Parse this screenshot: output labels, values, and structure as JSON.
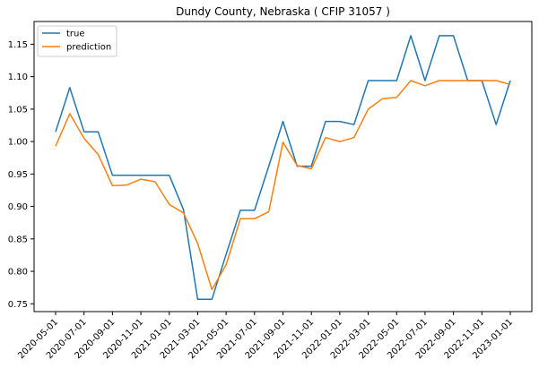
{
  "colors": {
    "true": "#1f77b4",
    "prediction": "#ff7f0e"
  },
  "chart_data": {
    "type": "line",
    "title": "Dundy County, Nebraska ( CFIP 31057 )",
    "xlabel": "",
    "ylabel": "",
    "x": [
      "2020-05-01",
      "2020-06-01",
      "2020-07-01",
      "2020-08-01",
      "2020-09-01",
      "2020-10-01",
      "2020-11-01",
      "2020-12-01",
      "2021-01-01",
      "2021-02-01",
      "2021-03-01",
      "2021-04-01",
      "2021-05-01",
      "2021-06-01",
      "2021-07-01",
      "2021-08-01",
      "2021-09-01",
      "2021-10-01",
      "2021-11-01",
      "2021-12-01",
      "2022-01-01",
      "2022-02-01",
      "2022-03-01",
      "2022-04-01",
      "2022-05-01",
      "2022-06-01",
      "2022-07-01",
      "2022-08-01",
      "2022-09-01",
      "2022-10-01",
      "2022-11-01",
      "2022-12-01",
      "2023-01-01"
    ],
    "x_ticks": [
      "2020-05-01",
      "2020-07-01",
      "2020-09-01",
      "2020-11-01",
      "2021-01-01",
      "2021-03-01",
      "2021-05-01",
      "2021-07-01",
      "2021-09-01",
      "2021-11-01",
      "2022-01-01",
      "2022-03-01",
      "2022-05-01",
      "2022-07-01",
      "2022-09-01",
      "2022-11-01",
      "2023-01-01"
    ],
    "y_ticks": [
      "0.75",
      "0.80",
      "0.85",
      "0.90",
      "0.95",
      "1.00",
      "1.05",
      "1.10",
      "1.15"
    ],
    "ylim": [
      0.738,
      1.185
    ],
    "grid": false,
    "legend": "upper-left",
    "series": [
      {
        "name": "true",
        "values": [
          1.015,
          1.083,
          1.015,
          1.015,
          0.948,
          0.948,
          0.948,
          0.948,
          0.948,
          0.895,
          0.757,
          0.757,
          0.826,
          0.894,
          0.894,
          0.962,
          1.031,
          0.962,
          0.962,
          1.031,
          1.031,
          1.026,
          1.094,
          1.094,
          1.094,
          1.163,
          1.094,
          1.163,
          1.163,
          1.094,
          1.094,
          1.026,
          1.094
        ]
      },
      {
        "name": "prediction",
        "values": [
          0.993,
          1.043,
          1.005,
          0.98,
          0.932,
          0.933,
          0.942,
          0.938,
          0.903,
          0.89,
          0.843,
          0.772,
          0.81,
          0.881,
          0.881,
          0.892,
          0.999,
          0.963,
          0.958,
          1.006,
          1.0,
          1.006,
          1.05,
          1.066,
          1.068,
          1.094,
          1.086,
          1.094,
          1.094,
          1.094,
          1.094,
          1.094,
          1.088
        ]
      }
    ]
  }
}
